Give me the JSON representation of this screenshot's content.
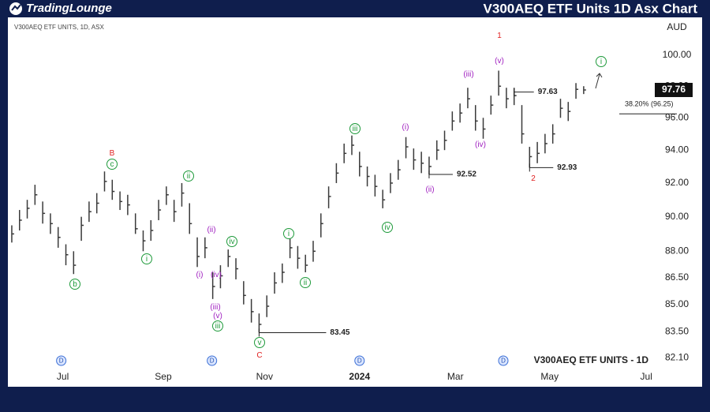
{
  "brand": "TradingLounge",
  "chart_data": {
    "type": "ohlc",
    "title": "V300AEQ ETF Units 1D Asx Chart",
    "symbol_label": "V300AEQ ETF UNITS, 1D, ASX",
    "watermark": "V300AEQ ETF UNITS - 1D",
    "currency": "AUD",
    "log_scale": true,
    "grid": false,
    "color": "#3a3a3a",
    "x": [
      0,
      1,
      2,
      3,
      4,
      5,
      6,
      7,
      8,
      9,
      10,
      11,
      12,
      13,
      14,
      15,
      16,
      17,
      18,
      19,
      20,
      21,
      22,
      23,
      24,
      25,
      26,
      27,
      28,
      29,
      30,
      31,
      32,
      33,
      34,
      35,
      36,
      37,
      38,
      39,
      40,
      41,
      42,
      43,
      44,
      45,
      46,
      47,
      48,
      49,
      50,
      51,
      52,
      53,
      54,
      55,
      56,
      57,
      58,
      59,
      60,
      61,
      62,
      63,
      64,
      65,
      66,
      67,
      68,
      69,
      70,
      71,
      72,
      73,
      74
    ],
    "highs": [
      89.5,
      90.4,
      91.0,
      91.9,
      90.9,
      90.2,
      89.4,
      88.4,
      88.0,
      90.0,
      90.9,
      91.4,
      92.7,
      92.2,
      91.5,
      91.3,
      90.2,
      89.2,
      89.8,
      91.0,
      91.8,
      91.0,
      92.0,
      90.8,
      88.8,
      88.8,
      86.8,
      87.2,
      88.1,
      87.6,
      86.3,
      85.3,
      84.5,
      85.5,
      86.8,
      87.3,
      88.8,
      88.3,
      87.8,
      88.6,
      90.2,
      91.8,
      93.2,
      94.4,
      94.9,
      93.9,
      93.0,
      92.5,
      91.6,
      92.6,
      93.4,
      94.8,
      94.1,
      93.9,
      93.6,
      94.6,
      95.2,
      96.4,
      96.9,
      97.9,
      96.8,
      96.0,
      97.4,
      99.0,
      97.9,
      97.9,
      96.8,
      94.2,
      94.5,
      95.0,
      95.6,
      97.2,
      97.0,
      98.2,
      98.0
    ],
    "lows": [
      88.5,
      89.2,
      89.9,
      90.7,
      89.6,
      89.0,
      88.2,
      87.2,
      86.7,
      88.6,
      89.7,
      90.2,
      91.5,
      91.0,
      90.4,
      90.1,
      89.0,
      88.0,
      88.6,
      89.8,
      90.7,
      89.7,
      90.6,
      89.0,
      87.1,
      87.6,
      85.3,
      85.9,
      87.1,
      86.4,
      85.0,
      84.0,
      83.45,
      84.3,
      85.6,
      86.2,
      87.6,
      87.0,
      86.8,
      87.4,
      88.8,
      90.5,
      92.0,
      93.2,
      93.7,
      92.4,
      91.8,
      91.2,
      90.5,
      91.4,
      92.2,
      93.5,
      92.8,
      92.6,
      92.52,
      93.4,
      94.0,
      95.2,
      95.7,
      96.6,
      95.2,
      94.7,
      96.2,
      97.4,
      96.6,
      96.8,
      94.4,
      92.93,
      93.2,
      93.8,
      94.4,
      96.0,
      95.8,
      97.2,
      97.5
    ],
    "closes": [
      89.0,
      89.8,
      90.5,
      91.3,
      90.2,
      89.6,
      88.8,
      87.8,
      87.2,
      89.5,
      90.3,
      90.8,
      92.1,
      91.5,
      90.9,
      90.7,
      89.3,
      88.6,
      89.2,
      90.4,
      91.3,
      90.3,
      91.4,
      89.6,
      87.7,
      88.2,
      86.0,
      86.6,
      87.7,
      87.0,
      85.5,
      84.6,
      83.9,
      84.9,
      86.2,
      86.8,
      88.2,
      87.6,
      87.2,
      88.0,
      89.6,
      91.2,
      92.6,
      93.8,
      94.3,
      93.0,
      92.4,
      91.8,
      91.0,
      92.0,
      92.8,
      94.2,
      93.4,
      93.2,
      93.0,
      94.0,
      94.6,
      95.8,
      96.3,
      97.2,
      95.8,
      95.3,
      96.8,
      98.0,
      97.2,
      97.4,
      95.0,
      93.6,
      93.8,
      94.4,
      95.0,
      96.6,
      96.4,
      97.8,
      97.76
    ],
    "xlim": [
      -0.3,
      83.2
    ],
    "xticks": [
      {
        "value": 6.6,
        "label": "Jul"
      },
      {
        "value": 19.6,
        "label": "Sep"
      },
      {
        "value": 32.7,
        "label": "Nov"
      },
      {
        "value": 45,
        "label": "2024"
      },
      {
        "value": 57.4,
        "label": "Mar"
      },
      {
        "value": 69.6,
        "label": "May"
      },
      {
        "value": 82.1,
        "label": "Jul"
      }
    ],
    "ylim": [
      81.6,
      102.5
    ],
    "yticks": [
      {
        "value": 100,
        "label": "100.00"
      },
      {
        "value": 98,
        "label": "98.00"
      },
      {
        "value": 96,
        "label": "96.00"
      },
      {
        "value": 94,
        "label": "94.00"
      },
      {
        "value": 92,
        "label": "92.00"
      },
      {
        "value": 90,
        "label": "90.00"
      },
      {
        "value": 88,
        "label": "88.00"
      },
      {
        "value": 86.5,
        "label": "86.50"
      },
      {
        "value": 85,
        "label": "85.00"
      },
      {
        "value": 83.5,
        "label": "83.50"
      },
      {
        "value": 82.1,
        "label": "82.10"
      }
    ],
    "last_price": 97.76,
    "levels": [
      {
        "value": 83.45,
        "x": 32
      },
      {
        "value": 92.52,
        "x": 54
      },
      {
        "value": 97.63,
        "x": 65
      },
      {
        "value": 92.93,
        "x": 67
      }
    ],
    "fib_level": {
      "value": 96.25,
      "label": "38.20% (96.25)"
    },
    "dividend_label": "D",
    "dividend_x": [
      6.4,
      25.9,
      45,
      63.6
    ],
    "wave_labels": [
      {
        "text": "B",
        "style": "major"
      },
      {
        "text": "c",
        "style": "circle"
      },
      {
        "text": "b",
        "style": "circle"
      },
      {
        "text": "i",
        "style": "circle"
      },
      {
        "text": "ii",
        "style": "circle"
      },
      {
        "text": "(ii)",
        "style": "minor"
      },
      {
        "text": "(i)",
        "style": "minor"
      },
      {
        "text": "(iv)",
        "style": "minor"
      },
      {
        "text": "(iii)",
        "style": "minor"
      },
      {
        "text": "(v)",
        "style": "minor"
      },
      {
        "text": "iii",
        "style": "circle"
      },
      {
        "text": "iv",
        "style": "circle"
      },
      {
        "text": "v",
        "style": "circle"
      },
      {
        "text": "C",
        "style": "major"
      },
      {
        "text": "i",
        "style": "circle"
      },
      {
        "text": "ii",
        "style": "circle"
      },
      {
        "text": "iii",
        "style": "circle"
      },
      {
        "text": "iv",
        "style": "circle"
      },
      {
        "text": "(i)",
        "style": "minor"
      },
      {
        "text": "(ii)",
        "style": "minor"
      },
      {
        "text": "(iii)",
        "style": "minor"
      },
      {
        "text": "(iv)",
        "style": "minor"
      },
      {
        "text": "(v)",
        "style": "minor"
      },
      {
        "text": "1",
        "style": "major"
      },
      {
        "text": "2",
        "style": "major"
      },
      {
        "text": "i",
        "style": "circle"
      }
    ]
  }
}
